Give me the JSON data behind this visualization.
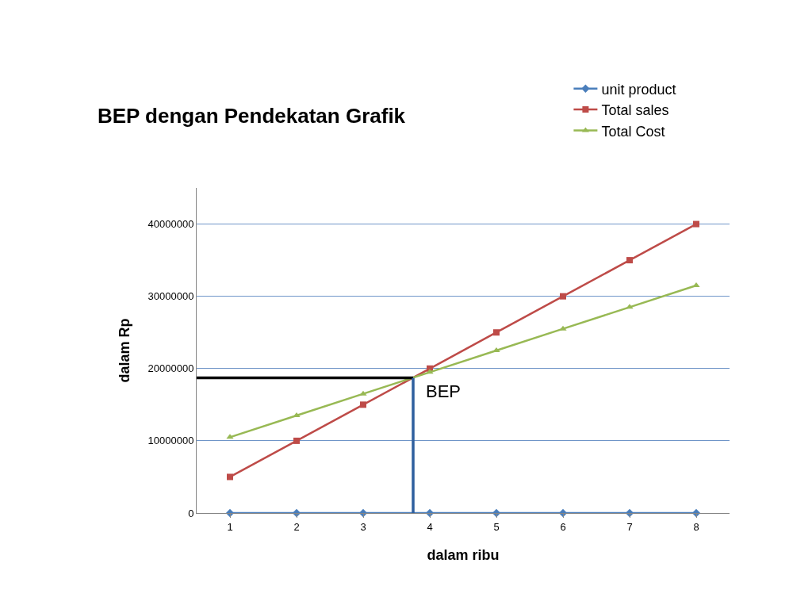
{
  "chart_data": {
    "type": "line",
    "title": "BEP dengan Pendekatan Grafik",
    "xlabel": "dalam ribu",
    "ylabel": "dalam Rp",
    "x": [
      1,
      2,
      3,
      4,
      5,
      6,
      7,
      8
    ],
    "xlim": [
      0.5,
      8.5
    ],
    "xticks": [
      1,
      2,
      3,
      4,
      5,
      6,
      7,
      8
    ],
    "ylim": [
      0,
      45000000
    ],
    "yticks": [
      0,
      10000000,
      20000000,
      30000000,
      40000000
    ],
    "grid": "y",
    "legend": "top right",
    "series": [
      {
        "name": "unit product",
        "color": "#4a7ebb",
        "marker": "diamond",
        "values": [
          0,
          0,
          0,
          0,
          0,
          0,
          0,
          0
        ]
      },
      {
        "name": "Total sales",
        "color": "#be4b48",
        "marker": "square",
        "values": [
          5000000,
          10000000,
          15000000,
          20000000,
          25000000,
          30000000,
          35000000,
          40000000
        ]
      },
      {
        "name": "Total Cost",
        "color": "#98b954",
        "marker": "triangle",
        "values": [
          10500000,
          13500000,
          16500000,
          19500000,
          22500000,
          25500000,
          28500000,
          31500000
        ]
      }
    ],
    "ref_lines": [
      {
        "axis": "y",
        "value": 18700000,
        "color": "#000000"
      },
      {
        "axis": "x",
        "value": 3.75,
        "color": "#2e5f9e"
      }
    ],
    "annotations": [
      {
        "text": "BEP",
        "x": 3.75,
        "y": 18700000
      }
    ]
  }
}
